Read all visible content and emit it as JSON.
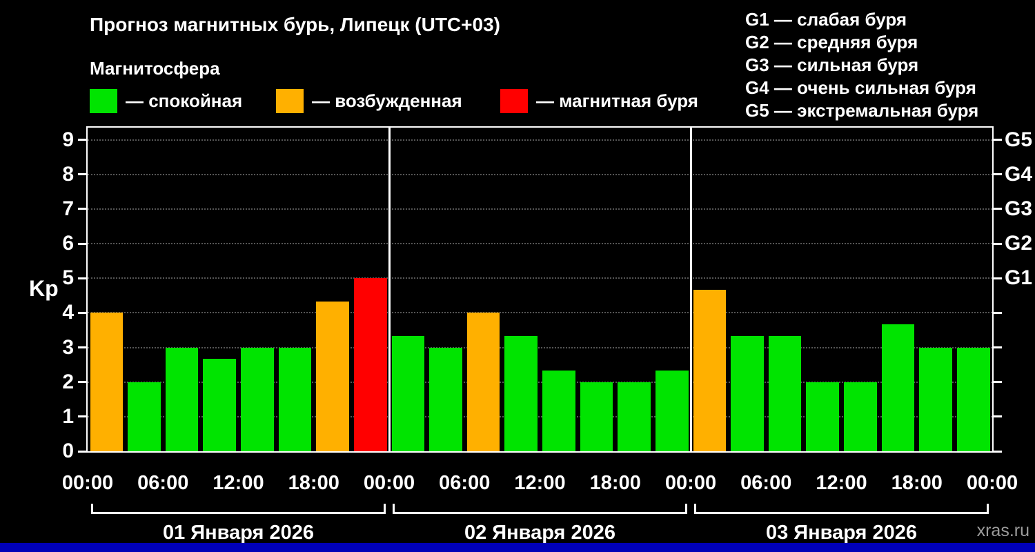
{
  "header": {
    "title": "Прогноз магнитных бурь, Липецк (UTC+03)",
    "subtitle": "Магнитосфера"
  },
  "legend": {
    "items": [
      {
        "label": "— спокойная",
        "color": "#00e400"
      },
      {
        "label": "— возбужденная",
        "color": "#ffb000"
      },
      {
        "label": "— магнитная буря",
        "color": "#ff0000"
      }
    ]
  },
  "storm_legend": {
    "items": [
      "G1 — слабая буря",
      "G2 — средняя буря",
      "G3 — сильная буря",
      "G4 — очень сильная буря",
      "G5 — экстремальная буря"
    ]
  },
  "chart_data": {
    "type": "bar",
    "title": "Прогноз магнитных бурь, Липецк (UTC+03)",
    "ylabel": "Kp",
    "ylim": [
      0,
      9.35
    ],
    "yticks": [
      0,
      1,
      2,
      3,
      4,
      5,
      6,
      7,
      8,
      9
    ],
    "right_ticks": [
      {
        "label": "G1",
        "kp": 5
      },
      {
        "label": "G2",
        "kp": 6
      },
      {
        "label": "G3",
        "kp": 7
      },
      {
        "label": "G4",
        "kp": 8
      },
      {
        "label": "G5",
        "kp": 9
      }
    ],
    "x_tick_labels": [
      "00:00",
      "06:00",
      "12:00",
      "18:00",
      "00:00",
      "06:00",
      "12:00",
      "18:00",
      "00:00",
      "06:00",
      "12:00",
      "18:00",
      "00:00"
    ],
    "days": [
      {
        "label": "01 Января 2026",
        "values": [
          4,
          2,
          3,
          2.67,
          3,
          3,
          4.33,
          5
        ]
      },
      {
        "label": "02 Января 2026",
        "values": [
          3.33,
          3,
          4,
          3.33,
          2.33,
          2,
          2,
          2.33
        ]
      },
      {
        "label": "03 Января 2026",
        "values": [
          4.67,
          3.33,
          3.33,
          2,
          2,
          3.67,
          3,
          3
        ]
      }
    ],
    "interval_hours": 3,
    "colors": {
      "quiet": "#00e400",
      "excited": "#ffb000",
      "storm": "#ff0000"
    },
    "thresholds": {
      "excited_min": 4,
      "storm_min": 5
    },
    "grid": "dotted",
    "legend_position": "top"
  },
  "footer": {
    "watermark": "xras.ru",
    "bar_color": "#0000b8"
  }
}
